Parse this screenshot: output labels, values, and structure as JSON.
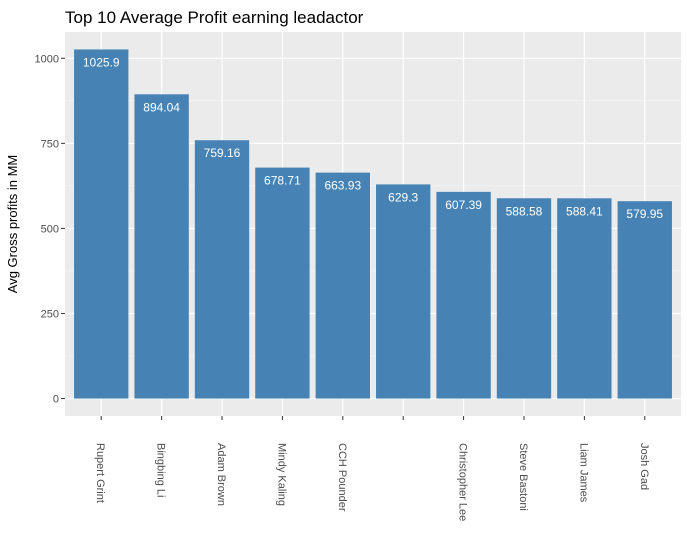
{
  "chart_data": {
    "type": "bar",
    "title": "Top 10 Average Profit earning leadactor",
    "xlabel": "",
    "ylabel": "Avg Gross profits in MM",
    "categories": [
      "Rupert Grint",
      "Bingbing Li",
      "Adam Brown",
      "Mindy Kaling",
      "CCH Pounder",
      "",
      "Christopher Lee",
      "Steve Bastoni",
      "Liam James",
      "Josh Gad"
    ],
    "values": [
      1025.9,
      894.04,
      759.16,
      678.71,
      663.93,
      629.3,
      607.39,
      588.58,
      588.41,
      579.95
    ],
    "value_labels": [
      "1025.9",
      "894.04",
      "759.16",
      "678.71",
      "663.93",
      "629.3",
      "607.39",
      "588.58",
      "588.41",
      "579.95"
    ],
    "yticks": [
      0,
      250,
      500,
      750,
      1000
    ],
    "ytick_labels": [
      "0",
      "250",
      "500",
      "750",
      "1000"
    ],
    "ylim": [
      -51.3,
      1077.2
    ],
    "grid": true,
    "bar_color": "#4682b4",
    "panel_background": "#ebebeb",
    "grid_color": "#ffffff"
  }
}
